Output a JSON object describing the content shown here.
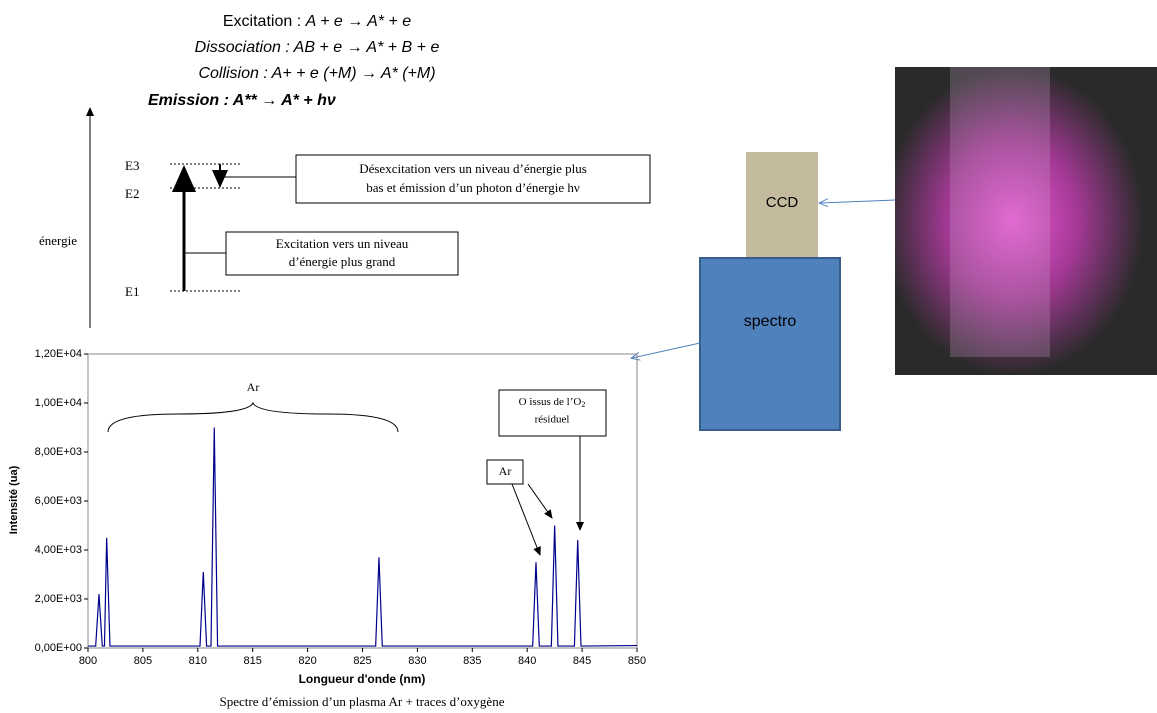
{
  "equations": [
    {
      "label": "Excitation : ",
      "formula": "A + e → A* + e"
    },
    {
      "label": "Dissociation : ",
      "formula": "AB + e → A* + B + e"
    },
    {
      "label": "Collision : ",
      "formula": "A+ + e (+M) → A* (+M)"
    },
    {
      "label": "Emission : ",
      "formula": "A** → A* + hν"
    }
  ],
  "energy_diagram": {
    "axis_label": "énergie",
    "levels": [
      "E3",
      "E2",
      "E1"
    ],
    "deexcitation": [
      "Désexcitation vers un niveau d’énergie plus",
      "bas et émission d’un photon d’énergie hν"
    ],
    "excitation": [
      "Excitation vers un niveau",
      "d’énergie plus grand"
    ]
  },
  "setup": {
    "ccd": "CCD",
    "spectro": "spectro"
  },
  "chart_data": {
    "type": "line",
    "x_label": "Longueur d'onde (nm)",
    "y_label": "Intensité (ua)",
    "caption": "Spectre d’émission d’un plasma Ar + traces d’oxygène",
    "x": [
      800,
      800.7,
      801,
      801.3,
      801.5,
      801.7,
      802,
      810.2,
      810.5,
      810.8,
      811.2,
      811.5,
      811.8,
      826.2,
      826.5,
      826.8,
      840.5,
      840.8,
      841.1,
      842.2,
      842.5,
      842.8,
      844.3,
      844.6,
      844.9,
      850
    ],
    "series": [
      {
        "color": "#00008b",
        "values": [
          80,
          80,
          2200,
          80,
          80,
          4500,
          80,
          80,
          3100,
          80,
          80,
          9000,
          80,
          80,
          3700,
          80,
          80,
          3500,
          80,
          80,
          5000,
          80,
          80,
          4400,
          80,
          100
        ]
      }
    ],
    "xlim": [
      800,
      850
    ],
    "xticks": [
      800,
      805,
      810,
      815,
      820,
      825,
      830,
      835,
      840,
      845,
      850
    ],
    "ylim": [
      0,
      12000
    ],
    "yticks": [
      {
        "value": 0,
        "label": "0,00E+00"
      },
      {
        "value": 2000,
        "label": "2,00E+03"
      },
      {
        "value": 4000,
        "label": "4,00E+03"
      },
      {
        "value": 6000,
        "label": "6,00E+03"
      },
      {
        "value": 8000,
        "label": "8,00E+03"
      },
      {
        "value": 10000,
        "label": "1,00E+04"
      },
      {
        "value": 12000,
        "label": "1,20E+04"
      }
    ],
    "annotations": {
      "ar_group": "Ar",
      "ar_box": "Ar",
      "o_box": [
        "O issus de l’O",
        "2",
        "résiduel"
      ]
    }
  }
}
